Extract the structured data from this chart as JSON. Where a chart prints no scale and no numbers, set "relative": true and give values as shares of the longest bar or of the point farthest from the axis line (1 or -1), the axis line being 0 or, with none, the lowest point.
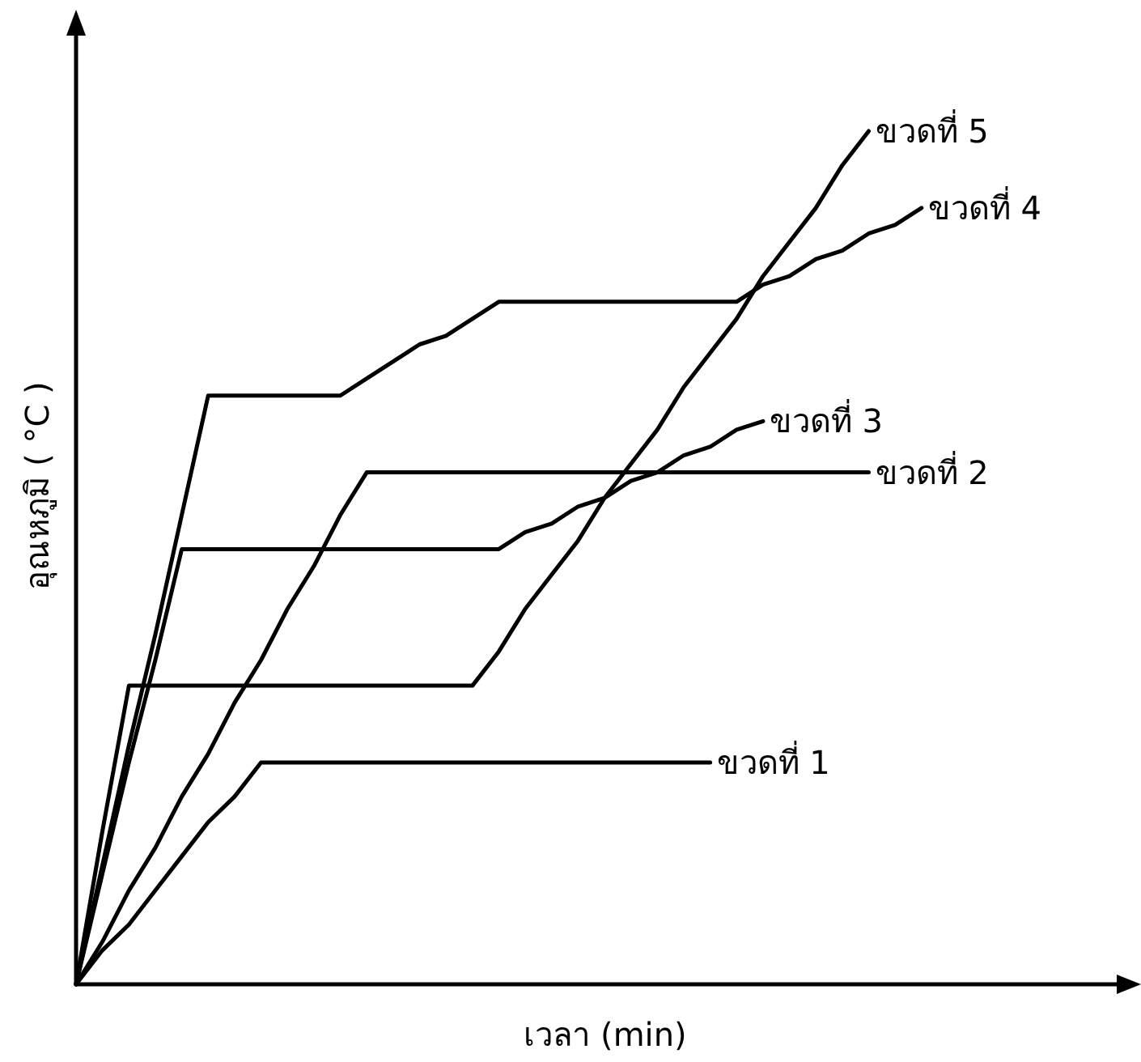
{
  "chart_data": {
    "type": "line",
    "relative": true,
    "xlabel": "เวลา (min)",
    "ylabel": "อุณหภูมิ ( °C )",
    "marker": "none",
    "line_style": "solid",
    "categories": [
      null,
      null,
      null,
      null,
      null,
      null,
      null,
      null,
      null,
      null,
      null,
      null,
      null,
      null,
      null,
      null,
      null,
      null,
      null,
      null,
      null,
      null,
      null,
      null,
      null,
      null,
      null,
      null,
      null,
      null,
      null,
      null,
      null
    ],
    "series": [
      {
        "name": "ขวดที่ 1",
        "color": "#000000",
        "values": [
          0,
          0.04,
          0.07,
          0.11,
          0.15,
          0.19,
          0.22,
          0.26,
          0.26,
          0.26,
          0.26,
          0.26,
          0.26,
          0.26,
          0.26,
          0.26,
          0.26,
          0.26,
          0.26,
          0.26,
          0.26,
          0.26,
          0.26,
          0.26,
          0.26,
          null,
          null,
          null,
          null,
          null,
          null,
          null,
          null
        ]
      },
      {
        "name": "ขวดที่ 2",
        "color": "#000000",
        "values": [
          0,
          0.05,
          0.11,
          0.16,
          0.22,
          0.27,
          0.33,
          0.38,
          0.44,
          0.49,
          0.55,
          0.6,
          0.6,
          0.6,
          0.6,
          0.6,
          0.6,
          0.6,
          0.6,
          0.6,
          0.6,
          0.6,
          0.6,
          0.6,
          0.6,
          0.6,
          0.6,
          0.6,
          0.6,
          0.6,
          0.6,
          null,
          null
        ]
      },
      {
        "name": "ขวดที่ 3",
        "color": "#000000",
        "values": [
          0,
          0.13,
          0.26,
          0.38,
          0.51,
          0.51,
          0.51,
          0.51,
          0.51,
          0.51,
          0.51,
          0.51,
          0.51,
          0.51,
          0.51,
          0.51,
          0.51,
          0.53,
          0.54,
          0.56,
          0.57,
          0.59,
          0.6,
          0.62,
          0.63,
          0.65,
          0.66,
          null,
          null,
          null,
          null,
          null,
          null
        ]
      },
      {
        "name": "ขวดที่ 4",
        "color": "#000000",
        "values": [
          0,
          0.14,
          0.28,
          0.41,
          0.55,
          0.69,
          0.69,
          0.69,
          0.69,
          0.69,
          0.69,
          0.71,
          0.73,
          0.75,
          0.76,
          0.78,
          0.8,
          0.8,
          0.8,
          0.8,
          0.8,
          0.8,
          0.8,
          0.8,
          0.8,
          0.8,
          0.82,
          0.83,
          0.85,
          0.86,
          0.88,
          0.89,
          0.91
        ]
      },
      {
        "name": "ขวดที่ 5",
        "color": "#000000",
        "values": [
          0,
          0.18,
          0.35,
          0.35,
          0.35,
          0.35,
          0.35,
          0.35,
          0.35,
          0.35,
          0.35,
          0.35,
          0.35,
          0.35,
          0.35,
          0.35,
          0.39,
          0.44,
          0.48,
          0.52,
          0.57,
          0.61,
          0.65,
          0.7,
          0.74,
          0.78,
          0.83,
          0.87,
          0.91,
          0.96,
          1,
          null,
          null
        ]
      }
    ]
  }
}
